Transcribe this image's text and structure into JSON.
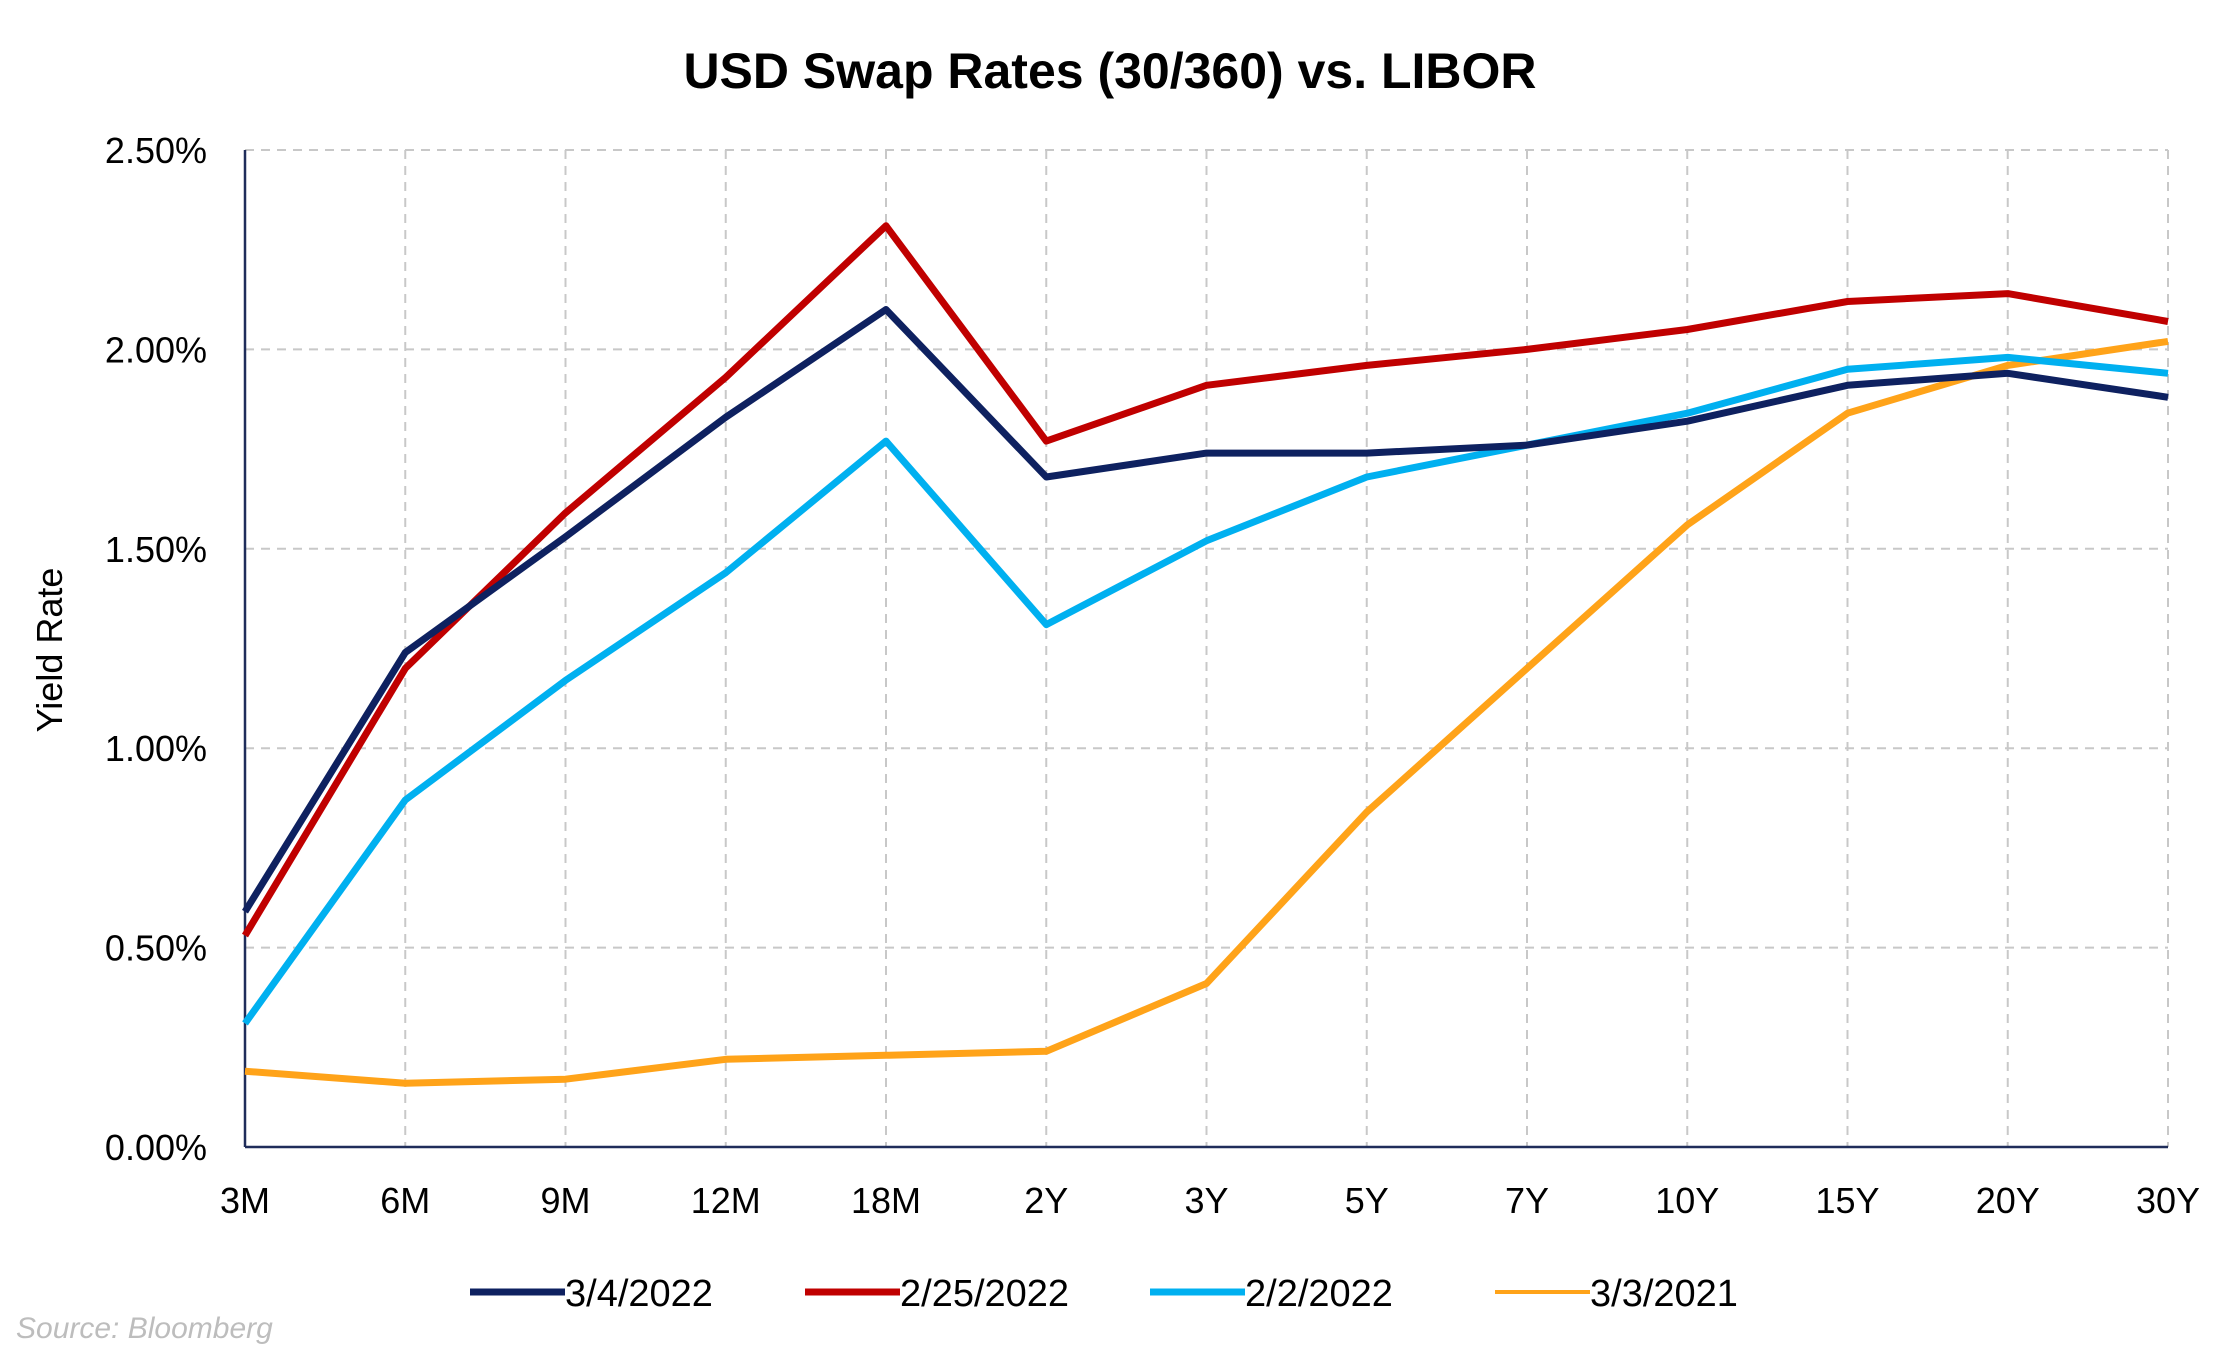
{
  "chart_data": {
    "type": "line",
    "title": "USD Swap Rates (30/360) vs. LIBOR",
    "xlabel": "",
    "ylabel": "Yield Rate",
    "categories": [
      "3M",
      "6M",
      "9M",
      "12M",
      "18M",
      "2Y",
      "3Y",
      "5Y",
      "7Y",
      "10Y",
      "15Y",
      "20Y",
      "30Y"
    ],
    "y_ticks": [
      "0.00%",
      "0.50%",
      "1.00%",
      "1.50%",
      "2.00%",
      "2.50%"
    ],
    "ylim": [
      0,
      2.5
    ],
    "grid": true,
    "legend_position": "bottom",
    "series": [
      {
        "name": "3/4/2022",
        "color": "#0e2160",
        "values": [
          0.59,
          1.24,
          1.53,
          1.83,
          2.1,
          1.68,
          1.74,
          1.74,
          1.76,
          1.82,
          1.91,
          1.94,
          1.88
        ]
      },
      {
        "name": "2/25/2022",
        "color": "#c00000",
        "values": [
          0.53,
          1.2,
          1.59,
          1.93,
          2.31,
          1.77,
          1.91,
          1.96,
          2.0,
          2.05,
          2.12,
          2.14,
          2.07
        ]
      },
      {
        "name": "2/2/2022",
        "color": "#00b0f0",
        "values": [
          0.31,
          0.87,
          1.17,
          1.44,
          1.77,
          1.31,
          1.52,
          1.68,
          1.76,
          1.84,
          1.95,
          1.98,
          1.94
        ]
      },
      {
        "name": "3/3/2021",
        "color": "#ffa319",
        "values": [
          0.19,
          0.16,
          0.17,
          0.22,
          0.23,
          0.24,
          0.41,
          0.84,
          1.2,
          1.56,
          1.84,
          1.96,
          2.02
        ]
      }
    ]
  },
  "source": "Source: Bloomberg"
}
